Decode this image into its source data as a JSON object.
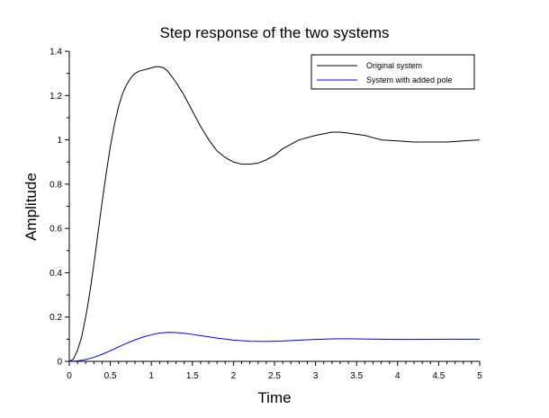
{
  "chart_data": {
    "type": "line",
    "title": "Step response of the two systems",
    "xlabel": "Time",
    "ylabel": "Amplitude",
    "xlim": [
      0,
      5
    ],
    "ylim": [
      0,
      1.4
    ],
    "xticks": [
      "0",
      "0.5",
      "1",
      "1.5",
      "2",
      "2.5",
      "3",
      "3.5",
      "4",
      "4.5",
      "5"
    ],
    "yticks": [
      "0",
      "0.2",
      "0.4",
      "0.6",
      "0.8",
      "1",
      "1.2",
      "1.4"
    ],
    "grid": false,
    "legend_position": "top-right",
    "series": [
      {
        "name": "Original system",
        "color": "#000000",
        "x": [
          0,
          0.05,
          0.1,
          0.15,
          0.2,
          0.25,
          0.3,
          0.35,
          0.4,
          0.45,
          0.5,
          0.55,
          0.6,
          0.65,
          0.7,
          0.75,
          0.8,
          0.85,
          0.9,
          0.95,
          1.0,
          1.05,
          1.1,
          1.15,
          1.2,
          1.3,
          1.4,
          1.5,
          1.6,
          1.7,
          1.8,
          1.9,
          2.0,
          2.1,
          2.2,
          2.3,
          2.4,
          2.5,
          2.6,
          2.8,
          3.0,
          3.2,
          3.3,
          3.4,
          3.6,
          3.8,
          4.0,
          4.2,
          4.4,
          4.6,
          4.8,
          5.0
        ],
        "values": [
          0,
          0.01,
          0.05,
          0.11,
          0.2,
          0.31,
          0.44,
          0.58,
          0.72,
          0.85,
          0.97,
          1.07,
          1.15,
          1.21,
          1.25,
          1.28,
          1.3,
          1.31,
          1.315,
          1.32,
          1.325,
          1.33,
          1.33,
          1.325,
          1.31,
          1.26,
          1.2,
          1.13,
          1.06,
          1.0,
          0.95,
          0.92,
          0.9,
          0.89,
          0.89,
          0.895,
          0.91,
          0.93,
          0.96,
          1.0,
          1.02,
          1.035,
          1.035,
          1.03,
          1.02,
          1.0,
          0.995,
          0.99,
          0.99,
          0.99,
          0.995,
          1.0
        ]
      },
      {
        "name": "System with added pole",
        "color": "#0000ff",
        "x": [
          0,
          0.1,
          0.2,
          0.3,
          0.4,
          0.5,
          0.6,
          0.7,
          0.8,
          0.9,
          1.0,
          1.1,
          1.2,
          1.3,
          1.4,
          1.5,
          1.6,
          1.8,
          2.0,
          2.2,
          2.4,
          2.6,
          2.8,
          3.0,
          3.2,
          3.4,
          3.6,
          3.8,
          4.0,
          4.2,
          4.4,
          4.6,
          4.8,
          5.0
        ],
        "values": [
          0,
          0.002,
          0.008,
          0.018,
          0.032,
          0.048,
          0.065,
          0.082,
          0.097,
          0.11,
          0.12,
          0.128,
          0.131,
          0.13,
          0.127,
          0.122,
          0.116,
          0.105,
          0.096,
          0.091,
          0.09,
          0.092,
          0.096,
          0.099,
          0.1015,
          0.102,
          0.101,
          0.1,
          0.099,
          0.099,
          0.0995,
          0.1,
          0.1,
          0.1
        ]
      }
    ]
  }
}
